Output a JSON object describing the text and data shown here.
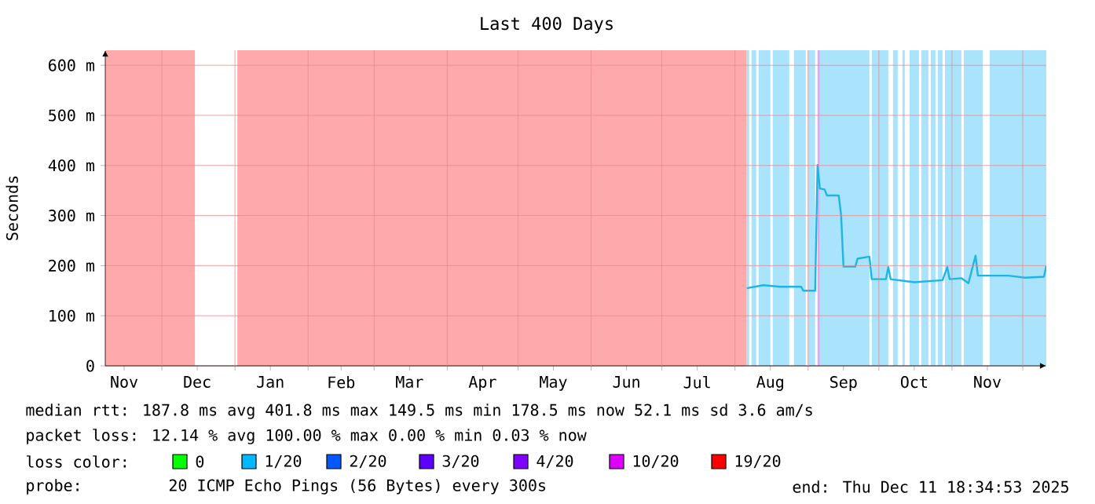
{
  "chart_data": {
    "type": "line",
    "title": "Last 400 Days",
    "ylabel": "Seconds",
    "xlim": [
      "2024-11-07",
      "2025-12-11"
    ],
    "ylim": [
      0,
      630
    ],
    "yticks": [
      0,
      {
        "value": 100,
        "label": "100 m"
      },
      {
        "value": 200,
        "label": "200 m"
      },
      {
        "value": 300,
        "label": "300 m"
      },
      {
        "value": 400,
        "label": "400 m"
      },
      {
        "value": 500,
        "label": "500 m"
      },
      {
        "value": 600,
        "label": "600 m"
      }
    ],
    "xticks": [
      {
        "value": "2024-11-15",
        "label": "Nov"
      },
      {
        "value": "2024-12-01",
        "label": null
      },
      {
        "value": "2024-12-16",
        "label": "Dec"
      },
      {
        "value": "2025-01-01",
        "label": null
      },
      {
        "value": "2025-01-16",
        "label": "Jan"
      },
      {
        "value": "2025-02-01",
        "label": null
      },
      {
        "value": "2025-02-15",
        "label": "Feb"
      },
      {
        "value": "2025-03-01",
        "label": null
      },
      {
        "value": "2025-03-16",
        "label": "Mar"
      },
      {
        "value": "2025-04-01",
        "label": null
      },
      {
        "value": "2025-04-16",
        "label": "Apr"
      },
      {
        "value": "2025-05-01",
        "label": null
      },
      {
        "value": "2025-05-16",
        "label": "May"
      },
      {
        "value": "2025-06-01",
        "label": null
      },
      {
        "value": "2025-06-16",
        "label": "Jun"
      },
      {
        "value": "2025-07-01",
        "label": null
      },
      {
        "value": "2025-07-16",
        "label": "Jul"
      },
      {
        "value": "2025-08-01",
        "label": null
      },
      {
        "value": "2025-08-16",
        "label": "Aug"
      },
      {
        "value": "2025-09-01",
        "label": null
      },
      {
        "value": "2025-09-16",
        "label": "Sep"
      },
      {
        "value": "2025-10-01",
        "label": null
      },
      {
        "value": "2025-10-16",
        "label": "Oct"
      },
      {
        "value": "2025-11-01",
        "label": null
      },
      {
        "value": "2025-11-16",
        "label": "Nov"
      },
      {
        "value": "2025-12-01",
        "label": null
      }
    ],
    "grid": true,
    "x": [
      "2025-08-06",
      "2025-08-13",
      "2025-08-20",
      "2025-08-29",
      "2025-08-30",
      "2025-09-04",
      "2025-09-05",
      "2025-09-06",
      "2025-09-08",
      "2025-09-09",
      "2025-09-14",
      "2025-09-15",
      "2025-09-16",
      "2025-09-21",
      "2025-09-22",
      "2025-09-27",
      "2025-09-28",
      "2025-10-04",
      "2025-10-05",
      "2025-10-06",
      "2025-10-16",
      "2025-10-28",
      "2025-10-30",
      "2025-10-31",
      "2025-11-05",
      "2025-11-08",
      "2025-11-11",
      "2025-11-12",
      "2025-11-25",
      "2025-12-02",
      "2025-12-10",
      "2025-12-11"
    ],
    "series": [
      {
        "color": "#1fb4e6",
        "values": [
          155,
          161,
          158,
          158,
          150,
          150,
          401,
          354,
          352,
          340,
          340,
          300,
          198,
          198,
          214,
          218,
          173,
          173,
          197,
          173,
          167,
          171,
          197,
          173,
          175,
          165,
          220,
          180,
          180,
          176,
          178,
          200
        ]
      }
    ],
    "bands": [
      {
        "axis": "x",
        "from": "2024-11-07",
        "to": "2024-12-15",
        "color": "#ffaaaa"
      },
      {
        "axis": "x",
        "from": "2025-01-02",
        "to": "2025-08-06",
        "color": "#ffaaaa"
      },
      {
        "axis": "x",
        "from": "2025-08-06",
        "to": "2025-08-07",
        "color": "#aae4fc"
      },
      {
        "axis": "x",
        "from": "2025-08-08",
        "to": "2025-08-10",
        "color": "#aae4fc"
      },
      {
        "axis": "x",
        "from": "2025-08-11",
        "to": "2025-08-16",
        "color": "#aae4fc"
      },
      {
        "axis": "x",
        "from": "2025-08-17",
        "to": "2025-08-24",
        "color": "#aae4fc"
      },
      {
        "axis": "x",
        "from": "2025-08-26",
        "to": "2025-08-31",
        "color": "#aae4fc"
      },
      {
        "axis": "x",
        "from": "2025-09-01",
        "to": "2025-09-04",
        "color": "#aae4fc"
      },
      {
        "axis": "x",
        "from": "2025-09-05",
        "to": "2025-09-06",
        "color": "#dca8f4"
      },
      {
        "axis": "x",
        "from": "2025-09-06",
        "to": "2025-09-27",
        "color": "#aae4fc"
      },
      {
        "axis": "x",
        "from": "2025-09-28",
        "to": "2025-10-05",
        "color": "#aae4fc"
      },
      {
        "axis": "x",
        "from": "2025-10-07",
        "to": "2025-10-09",
        "color": "#aae4fc"
      },
      {
        "axis": "x",
        "from": "2025-10-11",
        "to": "2025-10-12",
        "color": "#aae4fc"
      },
      {
        "axis": "x",
        "from": "2025-10-14",
        "to": "2025-10-18",
        "color": "#aae4fc"
      },
      {
        "axis": "x",
        "from": "2025-10-19",
        "to": "2025-10-22",
        "color": "#aae4fc"
      },
      {
        "axis": "x",
        "from": "2025-10-23",
        "to": "2025-10-25",
        "color": "#aae4fc"
      },
      {
        "axis": "x",
        "from": "2025-10-26",
        "to": "2025-10-28",
        "color": "#aae4fc"
      },
      {
        "axis": "x",
        "from": "2025-10-29",
        "to": "2025-11-05",
        "color": "#aae4fc"
      },
      {
        "axis": "x",
        "from": "2025-11-06",
        "to": "2025-11-14",
        "color": "#aae4fc"
      },
      {
        "axis": "x",
        "from": "2025-11-17",
        "to": "2025-12-11",
        "color": "#aae4fc"
      }
    ],
    "annotations": [
      "median rtt:  187.8 ms avg  401.8 ms max  149.5 ms min  178.5 ms now  52.1 ms sd  3.6   am/s",
      "packet loss: 12.14 % avg  100.00 % max  0.00 % min  0.03 % now",
      "loss color:",
      "0",
      "1/20",
      "2/20",
      "3/20",
      "4/20",
      "10/20",
      "19/20",
      "probe:",
      "20 ICMP Echo Pings (56 Bytes) every 300s",
      "end: Thu Dec 11 18:34:53 2025"
    ]
  }
}
